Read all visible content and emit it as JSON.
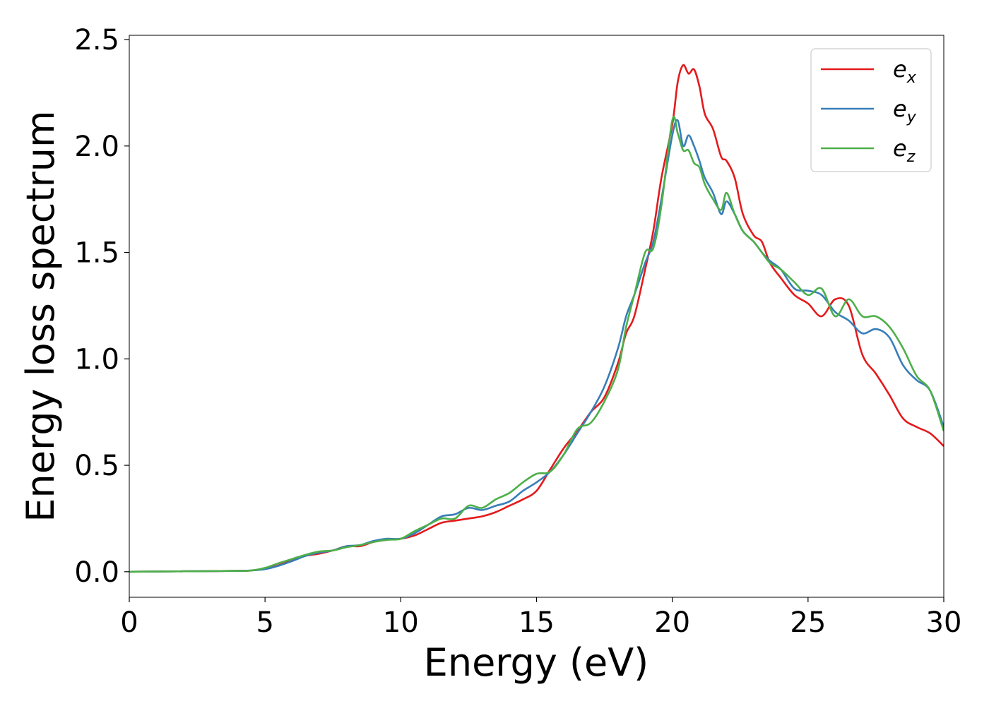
{
  "chart_data": {
    "type": "line",
    "title": "",
    "xlabel": "Energy (eV)",
    "ylabel": "Energy loss spectrum",
    "xlim": [
      0,
      30
    ],
    "ylim": [
      -0.12,
      2.52
    ],
    "xticks": [
      0,
      5,
      10,
      15,
      20,
      25,
      30
    ],
    "xtick_labels": [
      "0",
      "5",
      "10",
      "15",
      "20",
      "25",
      "30"
    ],
    "yticks": [
      0.0,
      0.5,
      1.0,
      1.5,
      2.0,
      2.5
    ],
    "ytick_labels": [
      "0.0",
      "0.5",
      "1.0",
      "1.5",
      "2.0",
      "2.5"
    ],
    "grid": false,
    "legend_position": "top-right",
    "series": [
      {
        "name": "e",
        "subscript": "x",
        "color": "#e41a1c",
        "x": [
          0,
          2,
          4,
          4.5,
          5,
          5.5,
          6,
          6.5,
          7,
          7.5,
          8,
          8.5,
          9,
          9.5,
          10,
          10.5,
          11,
          11.5,
          12,
          12.5,
          13,
          13.5,
          14,
          14.5,
          15,
          15.5,
          16,
          16.5,
          17,
          17.5,
          18,
          18.3,
          18.6,
          19,
          19.3,
          19.6,
          20,
          20.2,
          20.4,
          20.6,
          20.8,
          21,
          21.2,
          21.5,
          21.8,
          22,
          22.3,
          22.6,
          23,
          23.3,
          23.6,
          24,
          24.5,
          25,
          25.5,
          26,
          26.5,
          27,
          27.5,
          28,
          28.5,
          29,
          29.5,
          30
        ],
        "y": [
          0,
          0.002,
          0.004,
          0.006,
          0.015,
          0.03,
          0.055,
          0.075,
          0.085,
          0.1,
          0.12,
          0.12,
          0.14,
          0.15,
          0.155,
          0.17,
          0.2,
          0.23,
          0.24,
          0.25,
          0.26,
          0.28,
          0.31,
          0.34,
          0.38,
          0.48,
          0.58,
          0.66,
          0.75,
          0.82,
          0.98,
          1.12,
          1.2,
          1.42,
          1.6,
          1.85,
          2.1,
          2.3,
          2.38,
          2.34,
          2.36,
          2.28,
          2.15,
          2.08,
          1.95,
          1.93,
          1.85,
          1.68,
          1.58,
          1.55,
          1.45,
          1.38,
          1.3,
          1.26,
          1.2,
          1.28,
          1.25,
          1.02,
          0.93,
          0.83,
          0.72,
          0.68,
          0.65,
          0.59
        ]
      },
      {
        "name": "e",
        "subscript": "y",
        "color": "#377eb8",
        "x": [
          0,
          2,
          4,
          4.5,
          5,
          5.5,
          6,
          6.5,
          7,
          7.5,
          8,
          8.5,
          9,
          9.5,
          10,
          10.5,
          11,
          11.5,
          12,
          12.5,
          13,
          13.5,
          14,
          14.5,
          15,
          15.5,
          16,
          16.5,
          17,
          17.5,
          18,
          18.3,
          18.6,
          19,
          19.3,
          19.6,
          20,
          20.2,
          20.4,
          20.6,
          20.8,
          21,
          21.2,
          21.5,
          21.8,
          22,
          22.3,
          22.6,
          23,
          23.3,
          23.6,
          24,
          24.5,
          25,
          25.5,
          26,
          26.5,
          27,
          27.5,
          28,
          28.5,
          29,
          29.5,
          30
        ],
        "y": [
          0,
          0.002,
          0.004,
          0.006,
          0.012,
          0.028,
          0.05,
          0.075,
          0.09,
          0.1,
          0.12,
          0.125,
          0.145,
          0.155,
          0.155,
          0.18,
          0.22,
          0.26,
          0.27,
          0.3,
          0.29,
          0.31,
          0.33,
          0.38,
          0.42,
          0.47,
          0.55,
          0.65,
          0.75,
          0.87,
          1.05,
          1.2,
          1.3,
          1.45,
          1.55,
          1.75,
          2.05,
          2.12,
          2.0,
          2.05,
          2.0,
          1.93,
          1.85,
          1.78,
          1.68,
          1.74,
          1.68,
          1.6,
          1.55,
          1.5,
          1.46,
          1.42,
          1.33,
          1.32,
          1.3,
          1.22,
          1.18,
          1.12,
          1.14,
          1.1,
          0.97,
          0.9,
          0.85,
          0.68
        ]
      },
      {
        "name": "e",
        "subscript": "z",
        "color": "#4daf4a",
        "x": [
          0,
          2,
          4,
          4.5,
          5,
          5.5,
          6,
          6.5,
          7,
          7.5,
          8,
          8.5,
          9,
          9.5,
          10,
          10.5,
          11,
          11.5,
          12,
          12.5,
          13,
          13.5,
          14,
          14.5,
          15,
          15.5,
          16,
          16.5,
          17,
          17.5,
          18,
          18.3,
          18.6,
          19,
          19.3,
          19.6,
          20,
          20.2,
          20.4,
          20.6,
          20.8,
          21,
          21.2,
          21.5,
          21.8,
          22,
          22.3,
          22.6,
          23,
          23.3,
          23.6,
          24,
          24.5,
          25,
          25.5,
          26,
          26.5,
          27,
          27.5,
          28,
          28.5,
          29,
          29.5,
          30
        ],
        "y": [
          0,
          0.002,
          0.004,
          0.006,
          0.018,
          0.04,
          0.06,
          0.08,
          0.095,
          0.1,
          0.115,
          0.125,
          0.14,
          0.15,
          0.155,
          0.19,
          0.22,
          0.25,
          0.25,
          0.31,
          0.3,
          0.34,
          0.37,
          0.42,
          0.46,
          0.47,
          0.55,
          0.67,
          0.7,
          0.8,
          0.95,
          1.15,
          1.3,
          1.5,
          1.52,
          1.72,
          2.12,
          2.06,
          1.98,
          1.98,
          1.92,
          1.9,
          1.82,
          1.75,
          1.7,
          1.78,
          1.68,
          1.6,
          1.55,
          1.5,
          1.45,
          1.42,
          1.36,
          1.3,
          1.33,
          1.2,
          1.28,
          1.2,
          1.2,
          1.15,
          1.05,
          0.92,
          0.85,
          0.66
        ]
      }
    ]
  }
}
